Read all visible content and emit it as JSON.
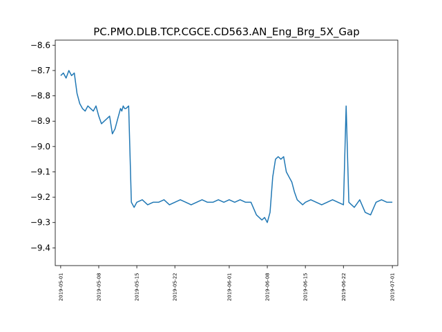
{
  "chart_data": {
    "type": "line",
    "title": "PC.PMO.DLB.TCP.CGCE.CD563.AN_Eng_Brg_5X_Gap",
    "xlabel": "",
    "ylabel": "",
    "x_type": "date",
    "xlim": [
      "2019-04-30",
      "2019-07-02"
    ],
    "ylim": [
      -9.47,
      -8.58
    ],
    "x_ticks": [
      "2019-05-01",
      "2019-05-08",
      "2019-05-15",
      "2019-05-22",
      "2019-06-01",
      "2019-06-08",
      "2019-06-15",
      "2019-06-22",
      "2019-07-01"
    ],
    "y_ticks": [
      -8.6,
      -8.7,
      -8.8,
      -8.9,
      -9.0,
      -9.1,
      -9.2,
      -9.3,
      -9.4
    ],
    "grid": false,
    "line_color": "#1f77b4",
    "series": [
      {
        "x": [
          "2019-05-01T00:00",
          "2019-05-01T12:00",
          "2019-05-02T00:00",
          "2019-05-02T12:00",
          "2019-05-03T00:00",
          "2019-05-03T12:00",
          "2019-05-04T00:00",
          "2019-05-04T12:00",
          "2019-05-05T00:00",
          "2019-05-05T12:00",
          "2019-05-06T00:00",
          "2019-05-06T12:00",
          "2019-05-07T00:00",
          "2019-05-07T12:00",
          "2019-05-08T00:00",
          "2019-05-08T12:00",
          "2019-05-09T00:00",
          "2019-05-09T12:00",
          "2019-05-10T00:00",
          "2019-05-10T12:00",
          "2019-05-11T00:00",
          "2019-05-11T12:00",
          "2019-05-12T00:00",
          "2019-05-12T06:00",
          "2019-05-12T12:00",
          "2019-05-12T18:00",
          "2019-05-13T00:00",
          "2019-05-13T12:00",
          "2019-05-14T00:00",
          "2019-05-14T12:00",
          "2019-05-15T00:00",
          "2019-05-16T00:00",
          "2019-05-17T00:00",
          "2019-05-18T00:00",
          "2019-05-19T00:00",
          "2019-05-20T00:00",
          "2019-05-21T00:00",
          "2019-05-22T00:00",
          "2019-05-23T00:00",
          "2019-05-24T00:00",
          "2019-05-25T00:00",
          "2019-05-26T00:00",
          "2019-05-27T00:00",
          "2019-05-28T00:00",
          "2019-05-29T00:00",
          "2019-05-30T00:00",
          "2019-05-31T00:00",
          "2019-06-01T00:00",
          "2019-06-02T00:00",
          "2019-06-03T00:00",
          "2019-06-04T00:00",
          "2019-06-05T00:00",
          "2019-06-06T00:00",
          "2019-06-07T00:00",
          "2019-06-07T12:00",
          "2019-06-08T00:00",
          "2019-06-08T12:00",
          "2019-06-09T00:00",
          "2019-06-09T12:00",
          "2019-06-10T00:00",
          "2019-06-10T12:00",
          "2019-06-11T00:00",
          "2019-06-11T12:00",
          "2019-06-12T00:00",
          "2019-06-12T12:00",
          "2019-06-13T00:00",
          "2019-06-13T12:00",
          "2019-06-14T00:00",
          "2019-06-14T12:00",
          "2019-06-15T00:00",
          "2019-06-16T00:00",
          "2019-06-17T00:00",
          "2019-06-18T00:00",
          "2019-06-19T00:00",
          "2019-06-20T00:00",
          "2019-06-21T00:00",
          "2019-06-22T00:00",
          "2019-06-22T12:00",
          "2019-06-23T00:00",
          "2019-06-24T00:00",
          "2019-06-25T00:00",
          "2019-06-26T00:00",
          "2019-06-27T00:00",
          "2019-06-28T00:00",
          "2019-06-29T00:00",
          "2019-06-30T00:00",
          "2019-07-01T00:00"
        ],
        "y": [
          -8.72,
          -8.71,
          -8.73,
          -8.7,
          -8.72,
          -8.71,
          -8.79,
          -8.83,
          -8.85,
          -8.86,
          -8.84,
          -8.85,
          -8.86,
          -8.84,
          -8.88,
          -8.91,
          -8.9,
          -8.89,
          -8.88,
          -8.95,
          -8.93,
          -8.89,
          -8.85,
          -8.86,
          -8.84,
          -8.85,
          -8.85,
          -8.84,
          -9.22,
          -9.24,
          -9.22,
          -9.21,
          -9.23,
          -9.22,
          -9.22,
          -9.21,
          -9.23,
          -9.22,
          -9.21,
          -9.22,
          -9.23,
          -9.22,
          -9.21,
          -9.22,
          -9.22,
          -9.21,
          -9.22,
          -9.21,
          -9.22,
          -9.21,
          -9.22,
          -9.22,
          -9.27,
          -9.29,
          -9.28,
          -9.3,
          -9.26,
          -9.12,
          -9.05,
          -9.04,
          -9.05,
          -9.04,
          -9.1,
          -9.12,
          -9.14,
          -9.18,
          -9.21,
          -9.22,
          -9.23,
          -9.22,
          -9.21,
          -9.22,
          -9.23,
          -9.22,
          -9.21,
          -9.22,
          -9.23,
          -8.84,
          -9.22,
          -9.24,
          -9.21,
          -9.26,
          -9.27,
          -9.22,
          -9.21,
          -9.22,
          -9.22
        ]
      }
    ]
  }
}
